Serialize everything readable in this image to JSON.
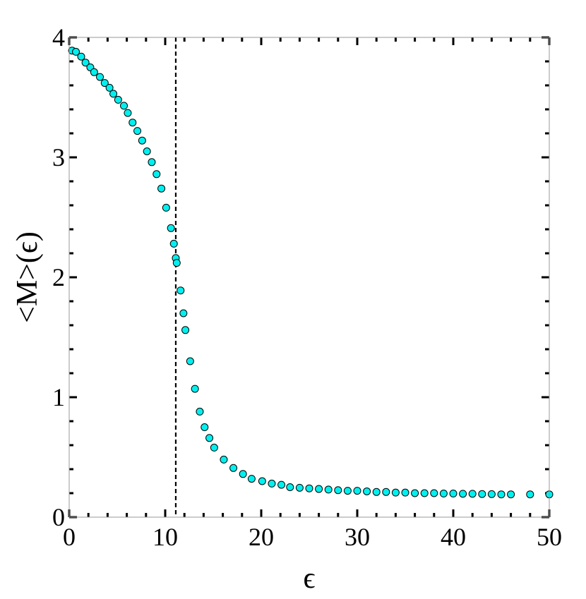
{
  "chart_data": {
    "type": "scatter",
    "title": "",
    "xlabel": "ϵ",
    "ylabel": "<M>(ϵ)",
    "xlim": [
      0,
      50
    ],
    "ylim": [
      0,
      4
    ],
    "xticks": [
      0,
      10,
      20,
      30,
      40,
      50
    ],
    "yticks": [
      0,
      1,
      2,
      3,
      4
    ],
    "grid": false,
    "frame": true,
    "marker_color": "#00f0f0",
    "marker_edge_color": "#000000",
    "reference_line": {
      "x": 11.1,
      "style": "dashed",
      "color": "#000000"
    },
    "x": [
      0.3,
      0.7,
      1.25,
      1.7,
      2.2,
      2.6,
      3.2,
      3.7,
      4.2,
      4.6,
      5.1,
      5.7,
      6.1,
      6.6,
      7.1,
      7.6,
      8.1,
      8.6,
      9.1,
      9.6,
      10.1,
      10.6,
      10.9,
      11.1,
      11.2,
      11.6,
      11.9,
      12.1,
      12.6,
      13.1,
      13.6,
      14.1,
      14.6,
      15.1,
      16.1,
      17.1,
      18.1,
      19.0,
      20.1,
      21.1,
      22.1,
      23,
      24,
      25,
      26,
      27,
      28,
      29,
      30,
      31,
      32,
      33,
      34,
      35,
      36,
      37,
      38,
      39,
      40,
      41,
      42,
      43,
      44,
      45,
      46,
      48,
      50
    ],
    "y": [
      3.89,
      3.88,
      3.84,
      3.79,
      3.75,
      3.71,
      3.67,
      3.62,
      3.58,
      3.53,
      3.48,
      3.43,
      3.37,
      3.29,
      3.22,
      3.14,
      3.05,
      2.96,
      2.86,
      2.74,
      2.58,
      2.41,
      2.28,
      2.16,
      2.12,
      1.89,
      1.7,
      1.56,
      1.3,
      1.07,
      0.88,
      0.75,
      0.66,
      0.58,
      0.48,
      0.41,
      0.36,
      0.32,
      0.3,
      0.28,
      0.27,
      0.25,
      0.245,
      0.24,
      0.235,
      0.23,
      0.225,
      0.22,
      0.22,
      0.215,
      0.21,
      0.21,
      0.205,
      0.205,
      0.2,
      0.2,
      0.2,
      0.197,
      0.197,
      0.195,
      0.195,
      0.193,
      0.192,
      0.19,
      0.19,
      0.19,
      0.19
    ]
  }
}
